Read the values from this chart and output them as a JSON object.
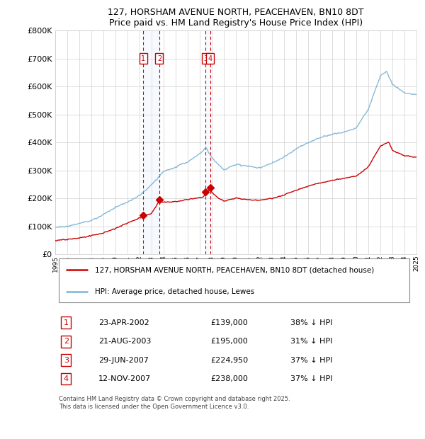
{
  "title1": "127, HORSHAM AVENUE NORTH, PEACEHAVEN, BN10 8DT",
  "title2": "Price paid vs. HM Land Registry's House Price Index (HPI)",
  "legend_line1": "127, HORSHAM AVENUE NORTH, PEACEHAVEN, BN10 8DT (detached house)",
  "legend_line2": "HPI: Average price, detached house, Lewes",
  "footer": "Contains HM Land Registry data © Crown copyright and database right 2025.\nThis data is licensed under the Open Government Licence v3.0.",
  "transactions": [
    {
      "num": 1,
      "date": "23-APR-2002",
      "price": 139000,
      "pct": "38%",
      "year_dec": 2002.3
    },
    {
      "num": 2,
      "date": "21-AUG-2003",
      "price": 195000,
      "pct": "31%",
      "year_dec": 2003.64
    },
    {
      "num": 3,
      "date": "29-JUN-2007",
      "price": 224950,
      "pct": "37%",
      "year_dec": 2007.49
    },
    {
      "num": 4,
      "date": "12-NOV-2007",
      "price": 238000,
      "pct": "37%",
      "year_dec": 2007.87
    }
  ],
  "hpi_color": "#7ab3d4",
  "price_color": "#cc0000",
  "transaction_box_color": "#cc0000",
  "vline_color": "#cc0000",
  "shade_color": "#ddeeff",
  "ylim_max": 800000,
  "ylim_min": 0,
  "year_start": 1995,
  "year_end": 2025,
  "yticks": [
    0,
    100000,
    200000,
    300000,
    400000,
    500000,
    600000,
    700000,
    800000
  ],
  "ytick_labels": [
    "£0",
    "£100K",
    "£200K",
    "£300K",
    "£400K",
    "£500K",
    "£600K",
    "£700K",
    "£800K"
  ]
}
